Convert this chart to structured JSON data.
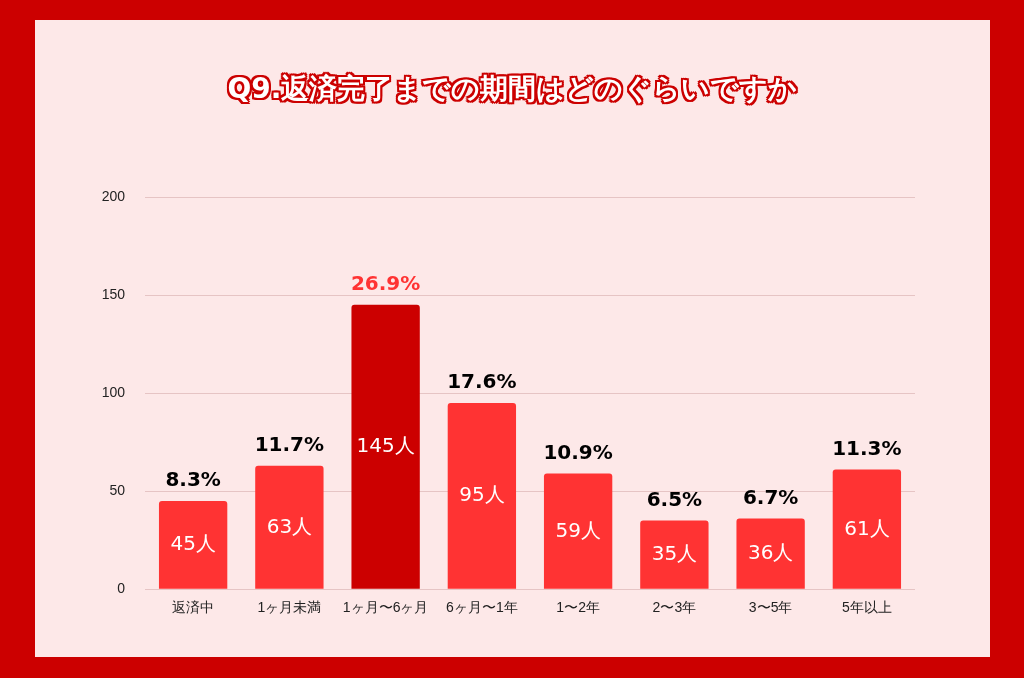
{
  "chart_data": {
    "type": "bar",
    "title": "Q9.返済完了までの期間はどのぐらいですか",
    "categories": [
      "返済中",
      "1ヶ月未満",
      "1ヶ月〜6ヶ月",
      "6ヶ月〜1年",
      "1〜2年",
      "2〜3年",
      "3〜5年",
      "5年以上"
    ],
    "values": [
      45,
      63,
      145,
      95,
      59,
      35,
      36,
      61
    ],
    "colors": [
      "#ff3333",
      "#ff3333",
      "#cc0000",
      "#ff3333",
      "#ff3333",
      "#ff3333",
      "#ff3333",
      "#ff3333"
    ],
    "value_labels": [
      "45人",
      "63人",
      "145人",
      "95人",
      "59人",
      "35人",
      "36人",
      "61人"
    ],
    "annotations": [
      {
        "text": "8.3%",
        "x": "返済中",
        "y": 45
      },
      {
        "text": "11.7%",
        "x": "1ヶ月未満",
        "y": 63
      },
      {
        "text": "26.9%",
        "x": "1ヶ月〜6ヶ月",
        "y": 145
      },
      {
        "text": "17.6%",
        "x": "6ヶ月〜1年",
        "y": 95
      },
      {
        "text": "10.9%",
        "x": "1〜2年",
        "y": 59
      },
      {
        "text": "6.5%",
        "x": "2〜3年",
        "y": 35
      },
      {
        "text": "6.7%",
        "x": "3〜5年",
        "y": 36
      },
      {
        "text": "11.3%",
        "x": "5年以上",
        "y": 61
      }
    ],
    "ylim": [
      0,
      200
    ],
    "yticks": [
      0,
      50,
      100,
      150,
      200
    ],
    "grid": "y",
    "legend": false
  }
}
